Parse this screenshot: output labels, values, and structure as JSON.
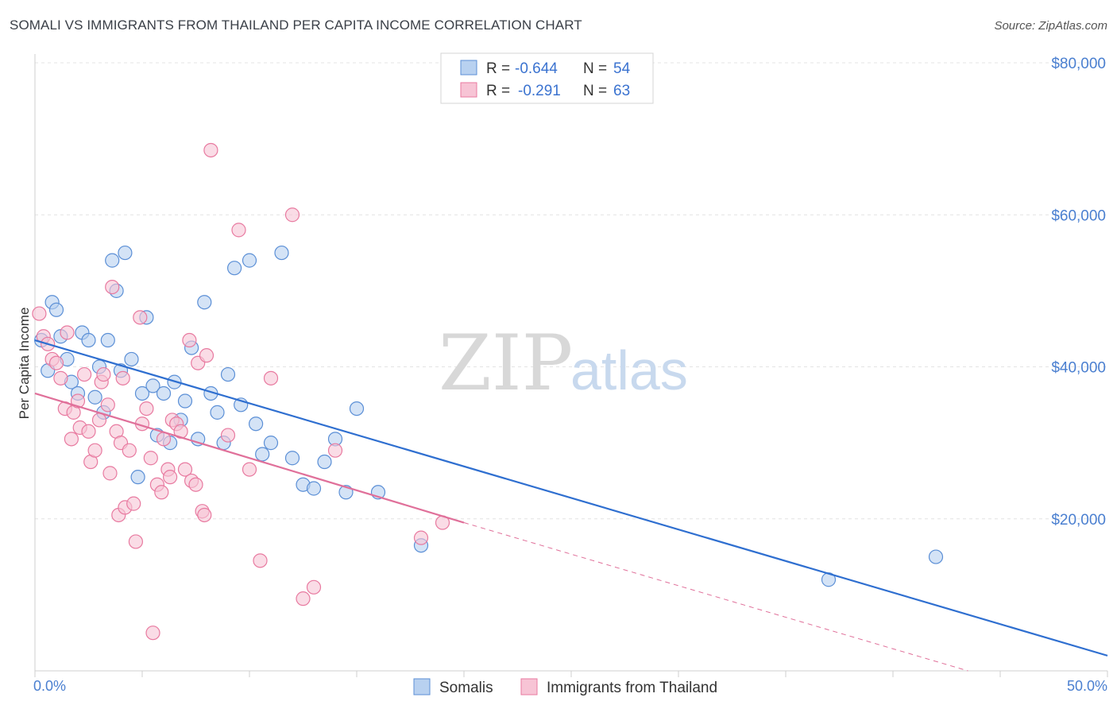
{
  "title": "SOMALI VS IMMIGRANTS FROM THAILAND PER CAPITA INCOME CORRELATION CHART",
  "source": "Source: ZipAtlas.com",
  "watermark": {
    "zip": "ZIP",
    "atlas": "atlas"
  },
  "legend": {
    "rows": [
      {
        "r_label": "R =",
        "r_value": "-0.644",
        "n_label": "N =",
        "n_value": "54"
      },
      {
        "r_label": "R =",
        "r_value": "-0.291",
        "n_label": "N =",
        "n_value": "63"
      }
    ]
  },
  "chart_data": {
    "type": "scatter",
    "title": "SOMALI VS IMMIGRANTS FROM THAILAND PER CAPITA INCOME CORRELATION CHART",
    "xlabel": "",
    "ylabel": "Per Capita Income",
    "xlim": [
      0,
      50
    ],
    "ylim": [
      0,
      80000
    ],
    "x_tick_labels": [
      "0.0%",
      "50.0%"
    ],
    "y_ticks": [
      20000,
      40000,
      60000,
      80000
    ],
    "y_tick_labels": [
      "$20,000",
      "$40,000",
      "$60,000",
      "$80,000"
    ],
    "grid": true,
    "legend_position": "top-center",
    "series": [
      {
        "name": "Somalis",
        "color": "#5b8fd6",
        "fill": "#b8d1f0",
        "trend": {
          "x": [
            0.0,
            50.0
          ],
          "y": [
            43500,
            2000
          ],
          "style": "solid"
        },
        "points": [
          [
            0.3,
            43500
          ],
          [
            0.6,
            39500
          ],
          [
            0.8,
            48500
          ],
          [
            1.0,
            47500
          ],
          [
            1.2,
            44000
          ],
          [
            1.5,
            41000
          ],
          [
            1.7,
            38000
          ],
          [
            2.0,
            36500
          ],
          [
            2.2,
            44500
          ],
          [
            2.5,
            43500
          ],
          [
            2.8,
            36000
          ],
          [
            3.0,
            40000
          ],
          [
            3.2,
            34000
          ],
          [
            3.4,
            43500
          ],
          [
            3.6,
            54000
          ],
          [
            3.8,
            50000
          ],
          [
            4.0,
            39500
          ],
          [
            4.2,
            55000
          ],
          [
            4.5,
            41000
          ],
          [
            4.8,
            25500
          ],
          [
            5.0,
            36500
          ],
          [
            5.2,
            46500
          ],
          [
            5.5,
            37500
          ],
          [
            5.7,
            31000
          ],
          [
            6.0,
            36500
          ],
          [
            6.3,
            30000
          ],
          [
            6.5,
            38000
          ],
          [
            6.8,
            33000
          ],
          [
            7.0,
            35500
          ],
          [
            7.3,
            42500
          ],
          [
            7.6,
            30500
          ],
          [
            7.9,
            48500
          ],
          [
            8.2,
            36500
          ],
          [
            8.5,
            34000
          ],
          [
            8.8,
            30000
          ],
          [
            9.0,
            39000
          ],
          [
            9.3,
            53000
          ],
          [
            9.6,
            35000
          ],
          [
            10.0,
            54000
          ],
          [
            10.3,
            32500
          ],
          [
            10.6,
            28500
          ],
          [
            11.0,
            30000
          ],
          [
            11.5,
            55000
          ],
          [
            12.0,
            28000
          ],
          [
            12.5,
            24500
          ],
          [
            13.0,
            24000
          ],
          [
            13.5,
            27500
          ],
          [
            14.0,
            30500
          ],
          [
            14.5,
            23500
          ],
          [
            15.0,
            34500
          ],
          [
            16.0,
            23500
          ],
          [
            18.0,
            16500
          ],
          [
            37.0,
            12000
          ],
          [
            42.0,
            15000
          ]
        ]
      },
      {
        "name": "Immigrants from Thailand",
        "color": "#e87aa0",
        "fill": "#f7c4d5",
        "trend": {
          "x": [
            0.0,
            20.0
          ],
          "y": [
            36500,
            19500
          ],
          "style": "solid",
          "extended_to": [
            43.5,
            0
          ]
        },
        "points": [
          [
            0.2,
            47000
          ],
          [
            0.4,
            44000
          ],
          [
            0.6,
            43000
          ],
          [
            0.8,
            41000
          ],
          [
            1.0,
            40500
          ],
          [
            1.2,
            38500
          ],
          [
            1.4,
            34500
          ],
          [
            1.5,
            44500
          ],
          [
            1.7,
            30500
          ],
          [
            1.8,
            34000
          ],
          [
            2.0,
            35500
          ],
          [
            2.1,
            32000
          ],
          [
            2.3,
            39000
          ],
          [
            2.5,
            31500
          ],
          [
            2.6,
            27500
          ],
          [
            2.8,
            29000
          ],
          [
            3.0,
            33000
          ],
          [
            3.1,
            38000
          ],
          [
            3.2,
            39000
          ],
          [
            3.4,
            35000
          ],
          [
            3.5,
            26000
          ],
          [
            3.6,
            50500
          ],
          [
            3.8,
            31500
          ],
          [
            3.9,
            20500
          ],
          [
            4.0,
            30000
          ],
          [
            4.1,
            38500
          ],
          [
            4.2,
            21500
          ],
          [
            4.4,
            29000
          ],
          [
            4.6,
            22000
          ],
          [
            4.7,
            17000
          ],
          [
            4.9,
            46500
          ],
          [
            5.0,
            32500
          ],
          [
            5.2,
            34500
          ],
          [
            5.4,
            28000
          ],
          [
            5.5,
            5000
          ],
          [
            5.7,
            24500
          ],
          [
            5.9,
            23500
          ],
          [
            6.0,
            30500
          ],
          [
            6.2,
            26500
          ],
          [
            6.4,
            33000
          ],
          [
            6.6,
            32500
          ],
          [
            6.8,
            31500
          ],
          [
            7.0,
            26500
          ],
          [
            7.2,
            43500
          ],
          [
            7.3,
            25000
          ],
          [
            7.5,
            24500
          ],
          [
            7.6,
            40500
          ],
          [
            7.8,
            21000
          ],
          [
            7.9,
            20500
          ],
          [
            8.0,
            41500
          ],
          [
            8.2,
            68500
          ],
          [
            9.0,
            31000
          ],
          [
            9.5,
            58000
          ],
          [
            10.0,
            26500
          ],
          [
            10.5,
            14500
          ],
          [
            11.0,
            38500
          ],
          [
            12.0,
            60000
          ],
          [
            12.5,
            9500
          ],
          [
            13.0,
            11000
          ],
          [
            14.0,
            29000
          ],
          [
            18.0,
            17500
          ],
          [
            19.0,
            19500
          ],
          [
            6.3,
            25500
          ]
        ]
      }
    ]
  }
}
